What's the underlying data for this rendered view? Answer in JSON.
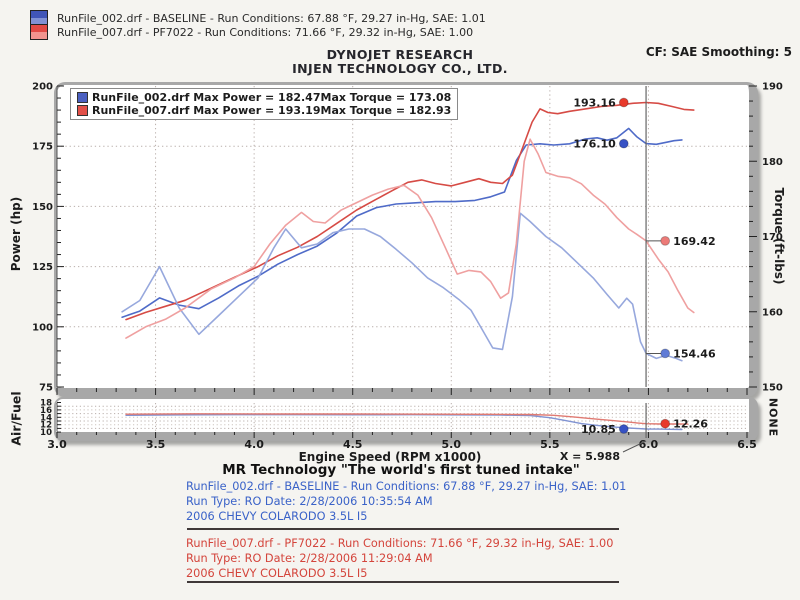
{
  "header": {
    "legend_rows": [
      {
        "text": "RunFile_002.drf - BASELINE  -  Run Conditions: 67.88 °F, 29.27 in-Hg, SAE: 1.01",
        "swatch_top": "#4055b8",
        "swatch_bottom": "#8191d4"
      },
      {
        "text": "RunFile_007.drf - PF7022  -  Run Conditions: 71.66 °F, 29.32 in-Hg, SAE: 1.00",
        "swatch_top": "#e14a45",
        "swatch_bottom": "#f2948f"
      }
    ],
    "title_line1": "DYNOJET RESEARCH",
    "title_line2": "INJEN TECHNOLOGY CO., LTD.",
    "cf_smoothing": "CF: SAE  Smoothing: 5"
  },
  "inner_legend": {
    "rows": [
      {
        "swatch": "#4a5fc0",
        "file_power": "RunFile_002.drf Max Power = 182.47",
        "torque": "Max Torque = 173.08"
      },
      {
        "swatch": "#e25048",
        "file_power": "RunFile_007.drf Max Power = 193.19",
        "torque": "Max Torque = 182.93"
      }
    ]
  },
  "cursor": {
    "x": 5.988,
    "label": "X = 5.988"
  },
  "chart_data": [
    {
      "type": "line",
      "xlabel": "Engine Speed (RPM x1000)",
      "x_range": [
        3.0,
        6.5
      ],
      "x_ticks": [
        "3.0",
        "3.5",
        "4.0",
        "4.5",
        "5.0",
        "5.5",
        "6.0",
        "6.5"
      ],
      "left_axis": {
        "label": "Power (hp)",
        "range": [
          75,
          200
        ],
        "ticks": [
          200,
          175,
          150,
          125,
          100,
          75
        ],
        "minor_step": 5
      },
      "right_axis": {
        "label": "Torque (ft-lbs)",
        "range": [
          150,
          190
        ],
        "ticks": [
          190,
          180,
          170,
          160,
          150
        ],
        "minor_step": 2
      },
      "grid": {
        "x_values": [
          3.5,
          4.0,
          4.5,
          5.0,
          5.5,
          6.0
        ],
        "power_values": [
          175,
          150,
          125,
          100
        ]
      },
      "series": [
        {
          "name": "RunFile_002.drf Power",
          "axis": "power",
          "color": "#4f6bc8",
          "points": [
            [
              3.33,
              104
            ],
            [
              3.42,
              106.5
            ],
            [
              3.52,
              112
            ],
            [
              3.62,
              109
            ],
            [
              3.72,
              107.5
            ],
            [
              3.82,
              112
            ],
            [
              3.92,
              117
            ],
            [
              4.02,
              121
            ],
            [
              4.12,
              126
            ],
            [
              4.22,
              130
            ],
            [
              4.32,
              133.5
            ],
            [
              4.42,
              139
            ],
            [
              4.52,
              146
            ],
            [
              4.62,
              149.5
            ],
            [
              4.72,
              151
            ],
            [
              4.82,
              151.5
            ],
            [
              4.92,
              152
            ],
            [
              5.02,
              152
            ],
            [
              5.12,
              152.5
            ],
            [
              5.2,
              154
            ],
            [
              5.27,
              156
            ],
            [
              5.33,
              169
            ],
            [
              5.38,
              175.5
            ],
            [
              5.45,
              176
            ],
            [
              5.52,
              175.5
            ],
            [
              5.6,
              176
            ],
            [
              5.68,
              178
            ],
            [
              5.74,
              178.5
            ],
            [
              5.79,
              177.5
            ],
            [
              5.84,
              178.5
            ],
            [
              5.9,
              182.4
            ],
            [
              5.94,
              179
            ],
            [
              5.988,
              176.1
            ],
            [
              6.04,
              175.8
            ],
            [
              6.09,
              176.6
            ],
            [
              6.13,
              177.3
            ],
            [
              6.17,
              177.6
            ]
          ]
        },
        {
          "name": "RunFile_007.drf Power",
          "axis": "power",
          "color": "#d64b45",
          "points": [
            [
              3.35,
              103
            ],
            [
              3.45,
              106
            ],
            [
              3.55,
              108.5
            ],
            [
              3.65,
              111
            ],
            [
              3.78,
              116
            ],
            [
              3.9,
              120.5
            ],
            [
              4.02,
              125
            ],
            [
              4.12,
              129.5
            ],
            [
              4.22,
              133
            ],
            [
              4.32,
              137.5
            ],
            [
              4.42,
              143
            ],
            [
              4.52,
              148.5
            ],
            [
              4.62,
              153
            ],
            [
              4.7,
              156.5
            ],
            [
              4.78,
              160
            ],
            [
              4.85,
              161
            ],
            [
              4.92,
              159.5
            ],
            [
              5.0,
              158.5
            ],
            [
              5.07,
              160
            ],
            [
              5.14,
              161.5
            ],
            [
              5.2,
              160
            ],
            [
              5.26,
              159.5
            ],
            [
              5.31,
              163
            ],
            [
              5.36,
              174
            ],
            [
              5.41,
              185
            ],
            [
              5.45,
              190.5
            ],
            [
              5.49,
              189
            ],
            [
              5.54,
              188.5
            ],
            [
              5.6,
              189.5
            ],
            [
              5.68,
              190.5
            ],
            [
              5.76,
              191.5
            ],
            [
              5.84,
              192
            ],
            [
              5.92,
              192.8
            ],
            [
              5.988,
              193.16
            ],
            [
              6.05,
              192.8
            ],
            [
              6.12,
              191.5
            ],
            [
              6.18,
              190.3
            ],
            [
              6.23,
              190
            ]
          ]
        },
        {
          "name": "RunFile_002.drf Torque",
          "axis": "torque",
          "color": "#97a8dd",
          "points": [
            [
              3.33,
              160
            ],
            [
              3.42,
              161.5
            ],
            [
              3.52,
              166
            ],
            [
              3.62,
              160.5
            ],
            [
              3.72,
              157
            ],
            [
              3.82,
              159.5
            ],
            [
              3.92,
              162
            ],
            [
              4.02,
              164.5
            ],
            [
              4.1,
              168.5
            ],
            [
              4.16,
              171
            ],
            [
              4.24,
              168.5
            ],
            [
              4.32,
              169
            ],
            [
              4.4,
              170.5
            ],
            [
              4.48,
              171
            ],
            [
              4.56,
              171
            ],
            [
              4.64,
              170
            ],
            [
              4.72,
              168.3
            ],
            [
              4.8,
              166.5
            ],
            [
              4.88,
              164.5
            ],
            [
              4.96,
              163.2
            ],
            [
              5.04,
              161.6
            ],
            [
              5.1,
              160.2
            ],
            [
              5.16,
              157.5
            ],
            [
              5.21,
              155.2
            ],
            [
              5.26,
              155
            ],
            [
              5.31,
              162
            ],
            [
              5.35,
              173.08
            ],
            [
              5.4,
              172
            ],
            [
              5.48,
              170
            ],
            [
              5.56,
              168.5
            ],
            [
              5.64,
              166.5
            ],
            [
              5.72,
              164.5
            ],
            [
              5.79,
              162.3
            ],
            [
              5.85,
              160.5
            ],
            [
              5.89,
              161.8
            ],
            [
              5.92,
              161
            ],
            [
              5.96,
              156
            ],
            [
              5.988,
              154.46
            ],
            [
              6.04,
              153.8
            ],
            [
              6.09,
              154.2
            ],
            [
              6.14,
              153.8
            ],
            [
              6.17,
              153.5
            ]
          ]
        },
        {
          "name": "RunFile_007.drf Torque",
          "axis": "torque",
          "color": "#efa0a0",
          "points": [
            [
              3.35,
              156.5
            ],
            [
              3.45,
              158
            ],
            [
              3.55,
              159
            ],
            [
              3.65,
              160.5
            ],
            [
              3.78,
              163
            ],
            [
              3.9,
              164.5
            ],
            [
              4.0,
              166
            ],
            [
              4.08,
              169
            ],
            [
              4.16,
              171.5
            ],
            [
              4.24,
              173.2
            ],
            [
              4.3,
              172
            ],
            [
              4.36,
              171.8
            ],
            [
              4.44,
              173.5
            ],
            [
              4.52,
              174.5
            ],
            [
              4.6,
              175.5
            ],
            [
              4.68,
              176.3
            ],
            [
              4.76,
              176.8
            ],
            [
              4.83,
              175.5
            ],
            [
              4.9,
              172.5
            ],
            [
              4.97,
              168.5
            ],
            [
              5.03,
              165
            ],
            [
              5.09,
              165.5
            ],
            [
              5.15,
              165.3
            ],
            [
              5.2,
              164
            ],
            [
              5.25,
              161.8
            ],
            [
              5.29,
              162.5
            ],
            [
              5.33,
              169
            ],
            [
              5.37,
              180
            ],
            [
              5.4,
              182.93
            ],
            [
              5.44,
              181
            ],
            [
              5.48,
              178.5
            ],
            [
              5.54,
              178
            ],
            [
              5.6,
              177.8
            ],
            [
              5.66,
              177
            ],
            [
              5.72,
              175.5
            ],
            [
              5.78,
              174.3
            ],
            [
              5.84,
              172.5
            ],
            [
              5.9,
              171
            ],
            [
              5.94,
              170.3
            ],
            [
              5.988,
              169.42
            ],
            [
              6.05,
              167
            ],
            [
              6.1,
              165.3
            ],
            [
              6.15,
              162.8
            ],
            [
              6.2,
              160.5
            ],
            [
              6.23,
              159.9
            ]
          ]
        }
      ],
      "annotations": [
        {
          "text": "193.16",
          "value": 193.16,
          "axis": "power",
          "dot_x": 5.875,
          "side": "left",
          "dot_color": "#e8392b"
        },
        {
          "text": "176.10",
          "value": 176.1,
          "axis": "power",
          "dot_x": 5.875,
          "side": "left",
          "dot_color": "#3752c4"
        },
        {
          "text": "169.42",
          "value": 169.42,
          "axis": "torque",
          "dot_x": 6.085,
          "side": "right",
          "leader_from_x": 5.988,
          "dot_color": "#ec7b78"
        },
        {
          "text": "154.46",
          "value": 154.46,
          "axis": "torque",
          "dot_x": 6.085,
          "side": "right",
          "leader_from_x": 5.988,
          "dot_color": "#5f7bd6"
        }
      ]
    },
    {
      "type": "line",
      "left_label": "Air/Fuel",
      "right_label": "NONE",
      "y_range": [
        10,
        18
      ],
      "y_ticks": [
        18,
        16,
        14,
        12,
        10
      ],
      "grid": {
        "x_values": [
          3.5,
          4.0,
          4.5,
          5.0,
          5.5,
          6.0
        ],
        "y_values": [
          17,
          16,
          15,
          14,
          13,
          12,
          11
        ]
      },
      "series": [
        {
          "name": "RunFile_002.drf Air/Fuel",
          "color": "#8093d2",
          "points": [
            [
              3.35,
              14.55
            ],
            [
              3.6,
              14.65
            ],
            [
              3.9,
              14.7
            ],
            [
              4.2,
              14.7
            ],
            [
              4.5,
              14.68
            ],
            [
              4.8,
              14.7
            ],
            [
              5.05,
              14.65
            ],
            [
              5.25,
              14.6
            ],
            [
              5.4,
              14.45
            ],
            [
              5.5,
              13.9
            ],
            [
              5.58,
              13.1
            ],
            [
              5.66,
              12.3
            ],
            [
              5.74,
              11.8
            ],
            [
              5.82,
              11.4
            ],
            [
              5.9,
              11.1
            ],
            [
              5.95,
              10.95
            ],
            [
              5.988,
              10.85
            ],
            [
              6.05,
              10.8
            ],
            [
              6.11,
              10.75
            ],
            [
              6.17,
              10.7
            ]
          ]
        },
        {
          "name": "RunFile_007.drf Air/Fuel",
          "color": "#e07a72",
          "points": [
            [
              3.35,
              14.85
            ],
            [
              3.7,
              14.95
            ],
            [
              4.1,
              14.9
            ],
            [
              4.5,
              14.9
            ],
            [
              4.9,
              14.85
            ],
            [
              5.2,
              14.8
            ],
            [
              5.4,
              14.75
            ],
            [
              5.52,
              14.55
            ],
            [
              5.62,
              14.1
            ],
            [
              5.72,
              13.6
            ],
            [
              5.82,
              13.1
            ],
            [
              5.9,
              12.7
            ],
            [
              5.94,
              12.5
            ],
            [
              5.988,
              12.26
            ],
            [
              6.06,
              12.2
            ],
            [
              6.13,
              12.18
            ],
            [
              6.2,
              12.15
            ]
          ]
        }
      ],
      "annotations": [
        {
          "text": "10.85",
          "value": 10.85,
          "dot_x": 5.875,
          "side": "left",
          "dot_color": "#3752c4"
        },
        {
          "text": "12.26",
          "value": 12.26,
          "dot_x": 6.085,
          "side": "right",
          "dot_color": "#e8392b"
        }
      ]
    }
  ],
  "footer": {
    "tagline": "MR Technology \"The world's first tuned intake\"",
    "runs": [
      {
        "color": "#3a62c8",
        "lines": [
          "RunFile_002.drf - BASELINE  -  Run Conditions: 67.88 °F, 29.27 in-Hg, SAE: 1.01",
          "Run Type: RO  Date: 2/28/2006 10:35:54 AM",
          "2006 CHEVY COLARODO 3.5L I5"
        ]
      },
      {
        "color": "#d4453c",
        "lines": [
          "RunFile_007.drf - PF7022  -  Run Conditions: 71.66 °F, 29.32 in-Hg, SAE: 1.00",
          "Run Type: RO  Date: 2/28/2006 11:29:04 AM",
          "2006 CHEVY COLARODO 3.5L I5"
        ]
      }
    ]
  }
}
